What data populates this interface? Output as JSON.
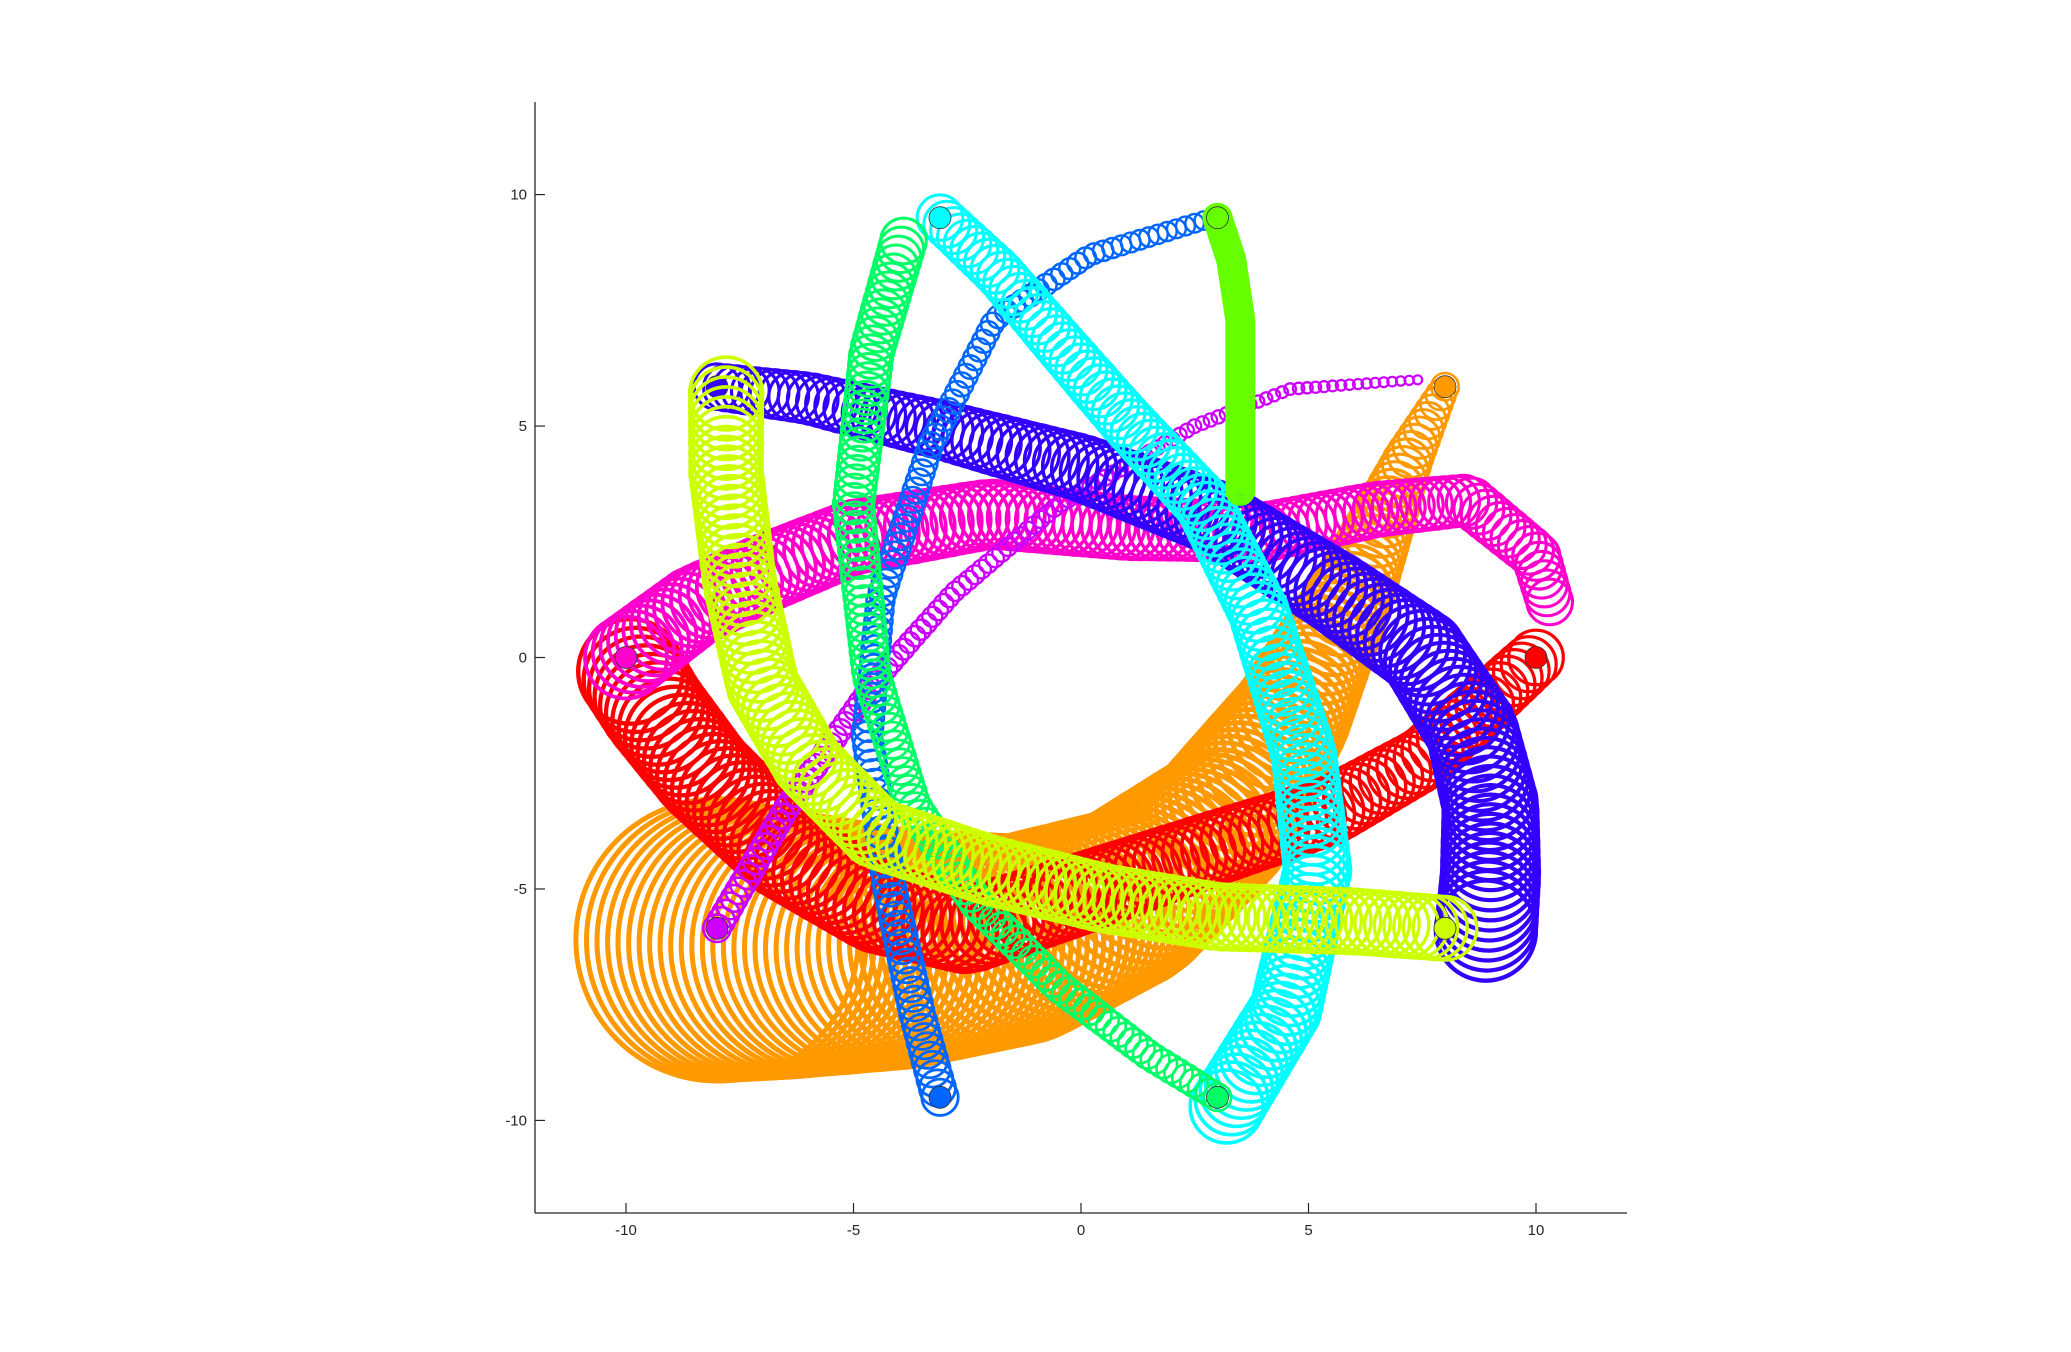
{
  "chart_data": {
    "type": "scatter",
    "title": "",
    "xlabel": "",
    "ylabel": "",
    "xlim": [
      -12,
      12
    ],
    "ylim": [
      -12,
      12
    ],
    "grid": false,
    "legend": "none",
    "axes_box": false,
    "x_ticks": [
      -10,
      -5,
      0,
      5,
      10
    ],
    "y_ticks": [
      -10,
      -5,
      0,
      5,
      10
    ],
    "x_tick_labels": [
      "-10",
      "-5",
      "0",
      "5",
      "10"
    ],
    "y_tick_labels": [
      "-10",
      "-5",
      "0",
      "5",
      "10"
    ],
    "marker": "open circles along a path, filled circle at path start",
    "series": [
      {
        "color": "#ff9900",
        "start": [
          8,
          5.85
        ],
        "marker_size": [
          0.3,
          3.1
        ],
        "path": [
          [
            8,
            5.85
          ],
          [
            7.2,
            4.3
          ],
          [
            6,
            1.5
          ],
          [
            4.6,
            -1.3
          ],
          [
            3,
            -3.6
          ],
          [
            1,
            -5.2
          ],
          [
            -1.4,
            -6.1
          ],
          [
            -4,
            -6.3
          ],
          [
            -6.5,
            -6.2
          ],
          [
            -8,
            -6.1
          ]
        ]
      },
      {
        "color": "#ff0000",
        "start": [
          10,
          0
        ],
        "marker_size": [
          0.6,
          1.15
        ],
        "path": [
          [
            10,
            0
          ],
          [
            9,
            -0.9
          ],
          [
            7.5,
            -2.2
          ],
          [
            5.5,
            -3.3
          ],
          [
            3,
            -4.1
          ],
          [
            0,
            -5.1
          ],
          [
            -2.5,
            -5.9
          ],
          [
            -4.5,
            -5.4
          ],
          [
            -6.5,
            -4.2
          ],
          [
            -8.3,
            -2.5
          ],
          [
            -9.4,
            -1.1
          ],
          [
            -9.9,
            -0.3
          ]
        ]
      },
      {
        "color": "#ff00cc",
        "start": [
          -10,
          0
        ],
        "marker_size": [
          0.9,
          0.5
        ],
        "path": [
          [
            -10,
            0
          ],
          [
            -8.5,
            1.1
          ],
          [
            -7,
            1.8
          ],
          [
            -5,
            2.6
          ],
          [
            -2,
            3.1
          ],
          [
            1,
            2.8
          ],
          [
            4,
            2.7
          ],
          [
            6.5,
            3.2
          ],
          [
            8.5,
            3.4
          ],
          [
            10,
            2.2
          ],
          [
            10.3,
            1.2
          ]
        ]
      },
      {
        "color": "#cc00ff",
        "start": [
          -8,
          -5.85
        ],
        "marker_size": [
          0.3,
          0.1
        ],
        "path": [
          [
            -8,
            -5.85
          ],
          [
            -6.5,
            -3.3
          ],
          [
            -4.6,
            -0.6
          ],
          [
            -2.8,
            1.4
          ],
          [
            -0.5,
            3.3
          ],
          [
            2.5,
            5
          ],
          [
            4.6,
            5.8
          ],
          [
            7.4,
            6
          ]
        ]
      },
      {
        "color": "#3300ff",
        "start": [
          -8,
          5.85
        ],
        "marker_size": [
          0.5,
          1.1
        ],
        "path": [
          [
            -8,
            5.85
          ],
          [
            -6,
            5.6
          ],
          [
            -3,
            4.9
          ],
          [
            0,
            4.1
          ],
          [
            3,
            3
          ],
          [
            5.6,
            1.4
          ],
          [
            7.5,
            0.1
          ],
          [
            8.6,
            -1.6
          ],
          [
            9,
            -3.2
          ],
          [
            9,
            -4.7
          ],
          [
            8.9,
            -5.9
          ]
        ]
      },
      {
        "color": "#0066ff",
        "start": [
          -3.1,
          -9.5
        ],
        "marker_size": [
          0.4,
          0.2
        ],
        "path": [
          [
            -3.1,
            -9.5
          ],
          [
            -3.6,
            -7.7
          ],
          [
            -4.2,
            -5
          ],
          [
            -4.7,
            -1.7
          ],
          [
            -4.4,
            1.3
          ],
          [
            -3.3,
            4.6
          ],
          [
            -1.9,
            7.3
          ],
          [
            0.2,
            8.7
          ],
          [
            2.9,
            9.5
          ]
        ]
      },
      {
        "color": "#00ffff",
        "start": [
          -3.1,
          9.5
        ],
        "marker_size": [
          0.5,
          0.8
        ],
        "path": [
          [
            -3.1,
            9.5
          ],
          [
            -1.8,
            8.3
          ],
          [
            -0.5,
            6.8
          ],
          [
            1,
            5.1
          ],
          [
            2.7,
            3.3
          ],
          [
            3.9,
            1
          ],
          [
            4.9,
            -2.1
          ],
          [
            5.2,
            -4.6
          ],
          [
            4.5,
            -7.6
          ],
          [
            3.2,
            -9.7
          ]
        ]
      },
      {
        "color": "#00ff66",
        "start": [
          3,
          -9.5
        ],
        "marker_size": [
          0.3,
          0.5
        ],
        "path": [
          [
            3,
            -9.5
          ],
          [
            1.5,
            -8.6
          ],
          [
            -0.5,
            -7.1
          ],
          [
            -2.3,
            -5.3
          ],
          [
            -3.7,
            -3.2
          ],
          [
            -4.6,
            -0.4
          ],
          [
            -5,
            3.3
          ],
          [
            -4.6,
            6.6
          ],
          [
            -3.9,
            9
          ]
        ]
      },
      {
        "color": "#66ff00",
        "start": [
          3,
          9.5
        ],
        "marker_size": [
          0.3,
          0.3
        ],
        "path": [
          [
            3,
            9.5
          ],
          [
            3.3,
            8.6
          ],
          [
            3.5,
            7.3
          ],
          [
            3.5,
            5.6
          ],
          [
            3.5,
            3.6
          ]
        ]
      },
      {
        "color": "#ccff00",
        "start": [
          8,
          -5.85
        ],
        "marker_size": [
          0.7,
          0.8
        ],
        "path": [
          [
            8,
            -5.85
          ],
          [
            6,
            -5.7
          ],
          [
            3,
            -5.6
          ],
          [
            0.5,
            -5.2
          ],
          [
            -2,
            -4.6
          ],
          [
            -4.5,
            -3.8
          ],
          [
            -6,
            -2.3
          ],
          [
            -7,
            -0.6
          ],
          [
            -7.5,
            1.6
          ],
          [
            -7.8,
            4
          ],
          [
            -7.8,
            5.7
          ]
        ]
      }
    ]
  }
}
